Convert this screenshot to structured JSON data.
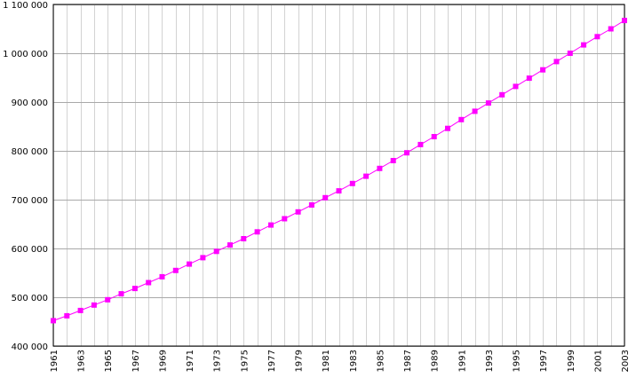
{
  "chart_data": {
    "type": "line",
    "title": "",
    "xlabel": "",
    "ylabel": "",
    "xlim": [
      1961,
      2003
    ],
    "ylim": [
      400000,
      1100000
    ],
    "grid": true,
    "legend": "none",
    "x_tick_labels": [
      "1961",
      "1963",
      "1965",
      "1967",
      "1969",
      "1971",
      "1973",
      "1975",
      "1977",
      "1979",
      "1981",
      "1983",
      "1985",
      "1987",
      "1989",
      "1991",
      "1993",
      "1995",
      "1997",
      "1999",
      "2001",
      "2003"
    ],
    "y_tick_values": [
      400000,
      500000,
      600000,
      700000,
      800000,
      900000,
      1000000,
      1100000
    ],
    "y_tick_labels": [
      "400 000",
      "500 000",
      "600 000",
      "700 000",
      "800 000",
      "900 000",
      "1 000 000",
      "1 100 000"
    ],
    "series": [
      {
        "color": "#ff00ff",
        "x": [
          1961,
          1962,
          1963,
          1964,
          1965,
          1966,
          1967,
          1968,
          1969,
          1970,
          1971,
          1972,
          1973,
          1974,
          1975,
          1976,
          1977,
          1978,
          1979,
          1980,
          1981,
          1982,
          1983,
          1984,
          1985,
          1986,
          1987,
          1988,
          1989,
          1990,
          1991,
          1992,
          1993,
          1994,
          1995,
          1996,
          1997,
          1998,
          1999,
          2000,
          2001,
          2002,
          2003
        ],
        "values": [
          452000,
          462000,
          473000,
          484000,
          495000,
          507000,
          518000,
          530000,
          542000,
          555000,
          568000,
          581000,
          594000,
          607000,
          620000,
          634000,
          648000,
          661000,
          675000,
          689000,
          704000,
          718000,
          733000,
          748000,
          764000,
          780000,
          796000,
          813000,
          829000,
          846000,
          864000,
          881000,
          898000,
          915000,
          932000,
          949000,
          966000,
          983000,
          1000000,
          1017000,
          1034000,
          1050000,
          1067000
        ]
      }
    ]
  }
}
